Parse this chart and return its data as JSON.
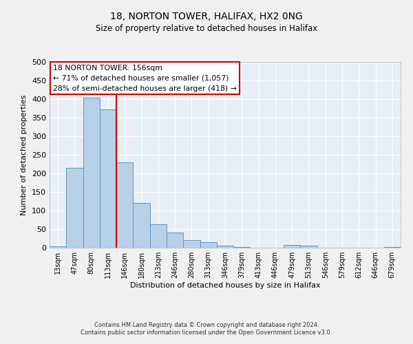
{
  "title": "18, NORTON TOWER, HALIFAX, HX2 0NG",
  "subtitle": "Size of property relative to detached houses in Halifax",
  "xlabel": "Distribution of detached houses by size in Halifax",
  "ylabel": "Number of detached properties",
  "bar_labels": [
    "13sqm",
    "47sqm",
    "80sqm",
    "113sqm",
    "146sqm",
    "180sqm",
    "213sqm",
    "246sqm",
    "280sqm",
    "313sqm",
    "346sqm",
    "379sqm",
    "413sqm",
    "446sqm",
    "479sqm",
    "513sqm",
    "546sqm",
    "579sqm",
    "612sqm",
    "646sqm",
    "679sqm"
  ],
  "bar_values": [
    3,
    215,
    403,
    372,
    230,
    120,
    63,
    40,
    21,
    14,
    6,
    1,
    0,
    0,
    8,
    5,
    0,
    0,
    0,
    0,
    2
  ],
  "bar_color": "#b8d0e8",
  "bar_edge_color": "#5a9abf",
  "vline_color": "#cc0000",
  "vline_x": 3.5,
  "annotation_title": "18 NORTON TOWER: 156sqm",
  "annotation_line1": "← 71% of detached houses are smaller (1,057)",
  "annotation_line2": "28% of semi-detached houses are larger (418) →",
  "annotation_box_color": "#cc0000",
  "ylim": [
    0,
    500
  ],
  "yticks": [
    0,
    50,
    100,
    150,
    200,
    250,
    300,
    350,
    400,
    450,
    500
  ],
  "bg_color": "#e8eef5",
  "grid_color": "#ffffff",
  "fig_bg_color": "#f0f0f0",
  "footer_line1": "Contains HM Land Registry data © Crown copyright and database right 2024.",
  "footer_line2": "Contains public sector information licensed under the Open Government Licence v3.0."
}
